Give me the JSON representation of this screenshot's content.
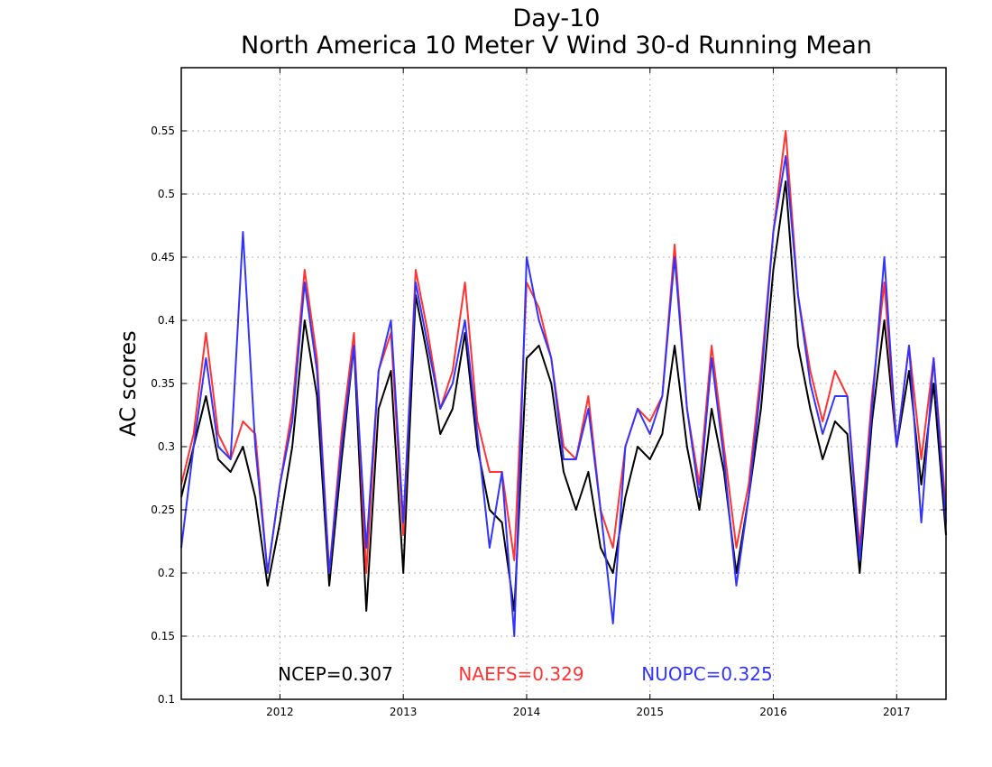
{
  "chart_data": {
    "type": "line",
    "title": "Day-10",
    "subtitle": "North America 10 Meter V Wind 30-d Running Mean",
    "ylabel": "AC scores",
    "xlabel": "",
    "xlim": [
      2011.2,
      2017.4
    ],
    "ylim": [
      0.1,
      0.6
    ],
    "xticks": [
      2012,
      2013,
      2014,
      2015,
      2016,
      2017
    ],
    "xtick_labels": [
      "2012",
      "2013",
      "2014",
      "2015",
      "2016",
      "2017"
    ],
    "yticks": [
      0.1,
      0.15,
      0.2,
      0.25,
      0.3,
      0.35,
      0.4,
      0.45,
      0.5,
      0.55
    ],
    "ytick_labels": [
      "0.1",
      "0.15",
      "0.2",
      "0.25",
      "0.3",
      "0.35",
      "0.4",
      "0.45",
      "0.5",
      "0.55"
    ],
    "grid": true,
    "legend_placement": "bottom",
    "series": [
      {
        "name": "NCEP",
        "label": "NCEP=0.307",
        "color": "#000000",
        "x": [
          2011.2,
          2011.3,
          2011.4,
          2011.5,
          2011.6,
          2011.7,
          2011.8,
          2011.9,
          2012.0,
          2012.1,
          2012.2,
          2012.3,
          2012.4,
          2012.5,
          2012.6,
          2012.7,
          2012.8,
          2012.9,
          2013.0,
          2013.1,
          2013.2,
          2013.3,
          2013.4,
          2013.5,
          2013.6,
          2013.7,
          2013.8,
          2013.9,
          2014.0,
          2014.1,
          2014.2,
          2014.3,
          2014.4,
          2014.5,
          2014.6,
          2014.7,
          2014.8,
          2014.9,
          2015.0,
          2015.1,
          2015.2,
          2015.3,
          2015.4,
          2015.5,
          2015.6,
          2015.7,
          2015.8,
          2015.9,
          2016.0,
          2016.1,
          2016.2,
          2016.3,
          2016.4,
          2016.5,
          2016.6,
          2016.7,
          2016.8,
          2016.9,
          2017.0,
          2017.1,
          2017.2,
          2017.3,
          2017.4
        ],
        "values": [
          0.26,
          0.3,
          0.34,
          0.29,
          0.28,
          0.3,
          0.26,
          0.19,
          0.24,
          0.3,
          0.4,
          0.34,
          0.19,
          0.29,
          0.38,
          0.17,
          0.33,
          0.36,
          0.2,
          0.42,
          0.37,
          0.31,
          0.33,
          0.39,
          0.3,
          0.25,
          0.24,
          0.17,
          0.37,
          0.38,
          0.35,
          0.28,
          0.25,
          0.28,
          0.22,
          0.2,
          0.26,
          0.3,
          0.29,
          0.31,
          0.38,
          0.3,
          0.25,
          0.33,
          0.28,
          0.2,
          0.26,
          0.33,
          0.44,
          0.51,
          0.38,
          0.33,
          0.29,
          0.32,
          0.31,
          0.2,
          0.32,
          0.4,
          0.3,
          0.36,
          0.27,
          0.35,
          0.23
        ]
      },
      {
        "name": "NAEFS",
        "label": "NAEFS=0.329",
        "color": "#ff3333",
        "x": [
          2011.2,
          2011.3,
          2011.4,
          2011.5,
          2011.6,
          2011.7,
          2011.8,
          2011.9,
          2012.0,
          2012.1,
          2012.2,
          2012.3,
          2012.4,
          2012.5,
          2012.6,
          2012.7,
          2012.8,
          2012.9,
          2013.0,
          2013.1,
          2013.2,
          2013.3,
          2013.4,
          2013.5,
          2013.6,
          2013.7,
          2013.8,
          2013.9,
          2014.0,
          2014.1,
          2014.2,
          2014.3,
          2014.4,
          2014.5,
          2014.6,
          2014.7,
          2014.8,
          2014.9,
          2015.0,
          2015.1,
          2015.2,
          2015.3,
          2015.4,
          2015.5,
          2015.6,
          2015.7,
          2015.8,
          2015.9,
          2016.0,
          2016.1,
          2016.2,
          2016.3,
          2016.4,
          2016.5,
          2016.6,
          2016.7,
          2016.8,
          2016.9,
          2017.0,
          2017.1,
          2017.2,
          2017.3,
          2017.4
        ],
        "values": [
          0.27,
          0.31,
          0.39,
          0.31,
          0.29,
          0.32,
          0.31,
          0.2,
          0.27,
          0.33,
          0.44,
          0.37,
          0.2,
          0.31,
          0.39,
          0.2,
          0.36,
          0.39,
          0.23,
          0.44,
          0.39,
          0.33,
          0.36,
          0.43,
          0.32,
          0.28,
          0.28,
          0.21,
          0.43,
          0.41,
          0.37,
          0.3,
          0.29,
          0.34,
          0.25,
          0.22,
          0.3,
          0.33,
          0.32,
          0.34,
          0.46,
          0.33,
          0.27,
          0.38,
          0.3,
          0.22,
          0.27,
          0.36,
          0.47,
          0.55,
          0.42,
          0.36,
          0.32,
          0.36,
          0.34,
          0.22,
          0.34,
          0.43,
          0.3,
          0.38,
          0.29,
          0.37,
          0.25
        ]
      },
      {
        "name": "NUOPC",
        "label": "NUOPC=0.325",
        "color": "#3333ff",
        "x": [
          2011.2,
          2011.3,
          2011.4,
          2011.5,
          2011.6,
          2011.7,
          2011.8,
          2011.9,
          2012.0,
          2012.1,
          2012.2,
          2012.3,
          2012.4,
          2012.5,
          2012.6,
          2012.7,
          2012.8,
          2012.9,
          2013.0,
          2013.1,
          2013.2,
          2013.3,
          2013.4,
          2013.5,
          2013.6,
          2013.7,
          2013.8,
          2013.9,
          2014.0,
          2014.1,
          2014.2,
          2014.3,
          2014.4,
          2014.5,
          2014.6,
          2014.7,
          2014.8,
          2014.9,
          2015.0,
          2015.1,
          2015.2,
          2015.3,
          2015.4,
          2015.5,
          2015.6,
          2015.7,
          2015.8,
          2015.9,
          2016.0,
          2016.1,
          2016.2,
          2016.3,
          2016.4,
          2016.5,
          2016.6,
          2016.7,
          2016.8,
          2016.9,
          2017.0,
          2017.1,
          2017.2,
          2017.3,
          2017.4
        ],
        "values": [
          0.22,
          0.3,
          0.37,
          0.3,
          0.29,
          0.47,
          0.3,
          0.2,
          0.27,
          0.32,
          0.43,
          0.36,
          0.2,
          0.3,
          0.38,
          0.22,
          0.36,
          0.4,
          0.24,
          0.43,
          0.38,
          0.33,
          0.35,
          0.4,
          0.31,
          0.22,
          0.28,
          0.15,
          0.45,
          0.4,
          0.37,
          0.29,
          0.29,
          0.33,
          0.25,
          0.16,
          0.3,
          0.33,
          0.31,
          0.34,
          0.45,
          0.33,
          0.26,
          0.37,
          0.29,
          0.19,
          0.26,
          0.35,
          0.47,
          0.53,
          0.42,
          0.35,
          0.31,
          0.34,
          0.34,
          0.21,
          0.33,
          0.45,
          0.3,
          0.38,
          0.24,
          0.37,
          0.24
        ]
      }
    ]
  }
}
